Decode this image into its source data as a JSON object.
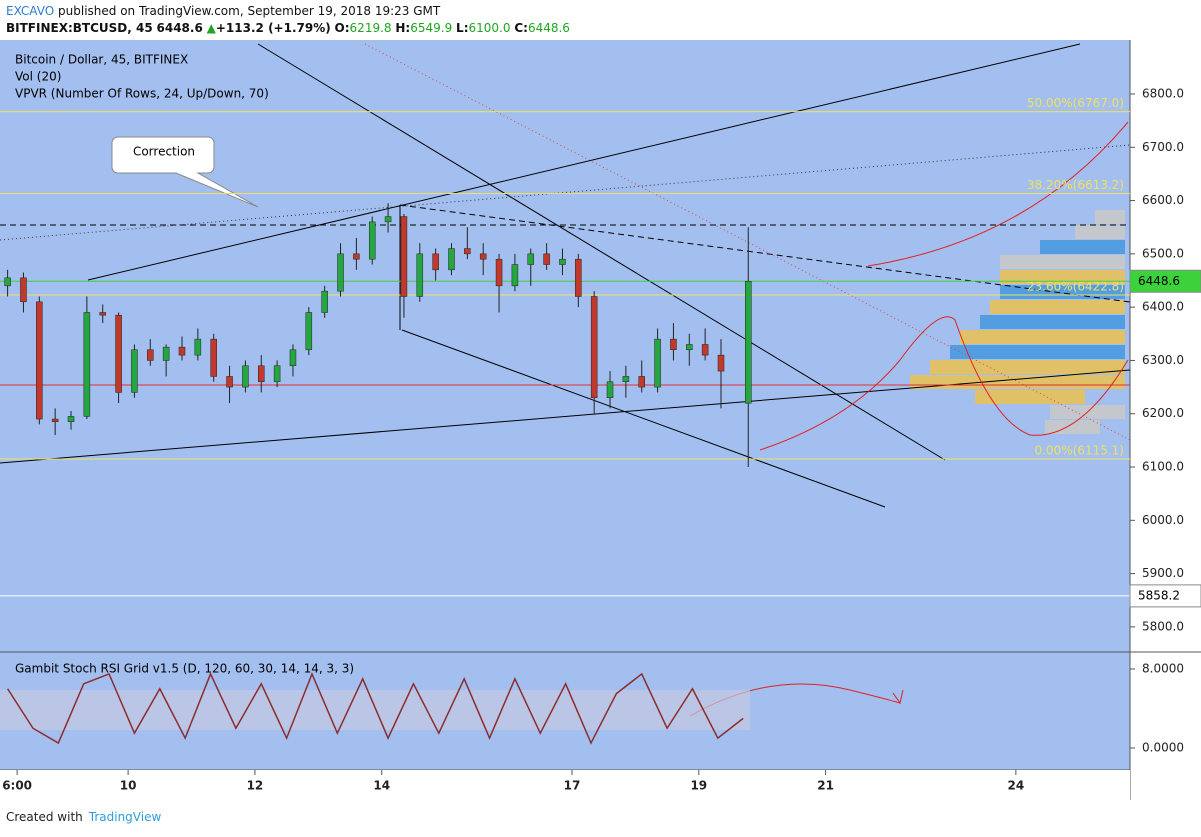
{
  "header": {
    "author": "EXCAVO",
    "published": "published on TradingView.com, September 19, 2018 19:23 GMT",
    "symbol": "BITFINEX:BTCUSD, 45",
    "last": "6448.6",
    "change": "+113.2 (+1.79%)",
    "ohlc": [
      {
        "label": "O:",
        "value": "6219.8"
      },
      {
        "label": "H:",
        "value": "6549.9"
      },
      {
        "label": "L:",
        "value": "6100.0"
      },
      {
        "label": "C:",
        "value": "6448.6"
      }
    ]
  },
  "legend": {
    "symbol": "Bitcoin / Dollar, 45, BITFINEX",
    "volume": "Vol (20)",
    "vpvr": "VPVR (Number Of Rows, 24, Up/Down, 70)",
    "rsi": "Gambit Stoch RSI Grid v1.5 (D, 120, 60, 30, 14, 14, 3, 3)"
  },
  "annotations": {
    "callout": "Correction"
  },
  "footer": {
    "text": "Created with",
    "brand": "TradingView"
  },
  "chart_data": {
    "type": "candlestick",
    "up_color": "#26a641",
    "down_color": "#c0392b",
    "xlim": [
      7.98,
      25.8
    ],
    "ylim": [
      5752.9,
      6901.3
    ],
    "xticks": [
      {
        "value": 8.25,
        "label": "6:00"
      },
      10,
      12,
      14,
      17,
      19,
      21,
      24
    ],
    "yticks": [
      {
        "value": 5800,
        "label": "5800.0"
      },
      {
        "value": 5900,
        "label": "5900.0"
      },
      {
        "value": 6000,
        "label": "6000.0"
      },
      {
        "value": 6100,
        "label": "6100.0"
      },
      {
        "value": 6200,
        "label": "6200.0"
      },
      {
        "value": 6300,
        "label": "6300.0"
      },
      {
        "value": 6400,
        "label": "6400.0"
      },
      {
        "value": 6500,
        "label": "6500.0"
      },
      {
        "value": 6600,
        "label": "6600.0"
      },
      {
        "value": 6700,
        "label": "6700.0"
      },
      {
        "value": 6800,
        "label": "6800.0"
      }
    ],
    "x": [
      8.1,
      8.35,
      8.6,
      8.85,
      9.1,
      9.35,
      9.6,
      9.85,
      10.1,
      10.35,
      10.6,
      10.85,
      11.1,
      11.35,
      11.6,
      11.85,
      12.1,
      12.35,
      12.6,
      12.85,
      13.1,
      13.35,
      13.6,
      13.85,
      14.1,
      14.35,
      14.6,
      14.85,
      15.1,
      15.35,
      15.6,
      15.85,
      16.1,
      16.35,
      16.6,
      16.85,
      17.1,
      17.35,
      17.6,
      17.85,
      18.1,
      18.35,
      18.6,
      18.85,
      19.1,
      19.35,
      19.78
    ],
    "open": [
      6440,
      6455,
      6410,
      6190,
      6185,
      6195,
      6390,
      6385,
      6240,
      6320,
      6300,
      6325,
      6310,
      6340,
      6270,
      6250,
      6290,
      6260,
      6290,
      6320,
      6390,
      6430,
      6500,
      6490,
      6560,
      6570,
      6420,
      6500,
      6470,
      6510,
      6500,
      6490,
      6440,
      6480,
      6500,
      6480,
      6490,
      6420,
      6230,
      6260,
      6270,
      6250,
      6340,
      6320,
      6330,
      6310,
      6219.8
    ],
    "high": [
      6470,
      6465,
      6420,
      6210,
      6205,
      6420,
      6405,
      6390,
      6330,
      6340,
      6330,
      6345,
      6360,
      6350,
      6290,
      6300,
      6310,
      6300,
      6330,
      6400,
      6440,
      6520,
      6530,
      6570,
      6595,
      6575,
      6520,
      6510,
      6520,
      6550,
      6520,
      6500,
      6500,
      6510,
      6520,
      6510,
      6500,
      6430,
      6280,
      6290,
      6300,
      6360,
      6370,
      6350,
      6360,
      6340,
      6549.9
    ],
    "low": [
      6420,
      6390,
      6180,
      6160,
      6170,
      6190,
      6370,
      6220,
      6230,
      6290,
      6270,
      6300,
      6300,
      6260,
      6220,
      6240,
      6240,
      6250,
      6270,
      6310,
      6380,
      6420,
      6470,
      6480,
      6540,
      6380,
      6410,
      6450,
      6460,
      6490,
      6460,
      6390,
      6430,
      6440,
      6470,
      6460,
      6400,
      6200,
      6210,
      6230,
      6240,
      6240,
      6300,
      6290,
      6300,
      6210,
      6100
    ],
    "close": [
      6455,
      6410,
      6190,
      6185,
      6195,
      6390,
      6385,
      6240,
      6320,
      6300,
      6325,
      6310,
      6340,
      6270,
      6250,
      6290,
      6260,
      6290,
      6320,
      6390,
      6430,
      6500,
      6490,
      6560,
      6570,
      6420,
      6500,
      6470,
      6510,
      6500,
      6490,
      6440,
      6480,
      6500,
      6480,
      6490,
      6420,
      6230,
      6260,
      6270,
      6250,
      6340,
      6320,
      6330,
      6310,
      6280,
      6448.6
    ],
    "fib_levels": [
      {
        "value": 6767,
        "label": "50.00%(6767.0)"
      },
      {
        "value": 6613.2,
        "label": "38.20%(6613.2)"
      },
      {
        "value": 6422.8,
        "label": "23.60%(6422.8)"
      },
      {
        "value": 6115.1,
        "label": "0.00%(6115.1)"
      }
    ],
    "fib_color": "#f0e060",
    "price_marks": [
      {
        "value": 6448.6,
        "label": "6448.6",
        "color": "#3cd23c"
      },
      {
        "value": 5858.2,
        "label": "5858.2",
        "color": "#ffffff"
      }
    ],
    "rsi": {
      "ylim": [
        -2.23,
        9.72
      ],
      "yticks": [
        {
          "value": 8,
          "label": "8.0000"
        },
        {
          "value": 0,
          "label": "0.0000"
        }
      ],
      "x": [
        8.1,
        8.5,
        8.9,
        9.3,
        9.7,
        10.1,
        10.5,
        10.9,
        11.3,
        11.7,
        12.1,
        12.5,
        12.9,
        13.3,
        13.7,
        14.1,
        14.5,
        14.9,
        15.3,
        15.7,
        16.1,
        16.5,
        16.9,
        17.3,
        17.7,
        18.1,
        18.5,
        18.9,
        19.3,
        19.7
      ],
      "values": [
        6,
        2,
        0.5,
        6.5,
        7.5,
        1.5,
        6,
        1,
        7.5,
        2,
        6.5,
        1,
        7.5,
        1.5,
        7,
        1,
        6.5,
        1.5,
        7,
        1,
        7,
        1.5,
        6.5,
        0.5,
        5.5,
        7.5,
        2,
        6,
        1,
        3
      ],
      "color": "#8b2d2d"
    }
  }
}
